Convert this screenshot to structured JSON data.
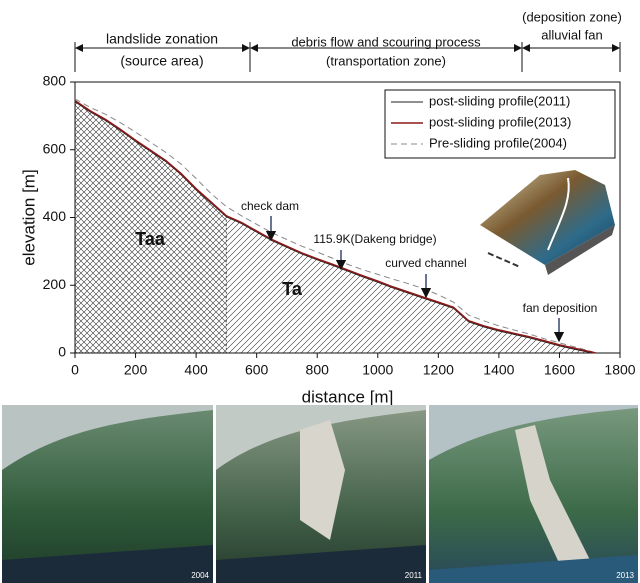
{
  "chart_data": {
    "type": "line",
    "xlabel": "distance [m]",
    "ylabel": "elevation [m]",
    "xlim": [
      0,
      1800
    ],
    "ylim": [
      0,
      800
    ],
    "xticks": [
      0,
      200,
      400,
      600,
      800,
      1000,
      1200,
      1400,
      1600,
      1800
    ],
    "yticks": [
      0,
      200,
      400,
      600,
      800
    ],
    "x": [
      0,
      50,
      100,
      150,
      200,
      250,
      300,
      350,
      400,
      450,
      500,
      550,
      600,
      650,
      700,
      750,
      800,
      850,
      900,
      950,
      1000,
      1050,
      1100,
      1150,
      1200,
      1250,
      1300,
      1350,
      1400,
      1450,
      1500,
      1550,
      1600,
      1650,
      1700,
      1720
    ],
    "series": [
      {
        "name": "post-sliding profile(2011)",
        "color": "#222222",
        "dash": false,
        "values": [
          742,
          712,
          687,
          657,
          625,
          595,
          565,
          527,
          482,
          442,
          402,
          382,
          357,
          332,
          312,
          292,
          275,
          259,
          242,
          225,
          209,
          192,
          177,
          162,
          147,
          132,
          92,
          77,
          65,
          55,
          45,
          33,
          21,
          11,
          2,
          0
        ]
      },
      {
        "name": "post-sliding profile(2013)",
        "color": "#8b1a1a",
        "dash": false,
        "values": [
          745,
          715,
          690,
          660,
          628,
          598,
          568,
          530,
          485,
          445,
          405,
          385,
          360,
          335,
          315,
          295,
          278,
          262,
          245,
          228,
          212,
          195,
          180,
          165,
          150,
          135,
          95,
          80,
          68,
          58,
          48,
          36,
          24,
          14,
          4,
          0
        ]
      },
      {
        "name": "Pre-sliding profile(2004)",
        "color": "#888888",
        "dash": true,
        "values": [
          750,
          725,
          705,
          680,
          652,
          622,
          592,
          558,
          515,
          470,
          432,
          405,
          380,
          355,
          335,
          315,
          298,
          280,
          262,
          246,
          232,
          218,
          205,
          190,
          172,
          150,
          112,
          95,
          80,
          68,
          56,
          42,
          30,
          18,
          6,
          0
        ]
      }
    ],
    "legend": "upper right",
    "zones": [
      {
        "title": "landslide zonation",
        "subtitle": "(source area)"
      },
      {
        "title": "debris flow and scouring process",
        "subtitle": "(transportation zone)"
      },
      {
        "title": "(deposition zone)",
        "subtitle": "alluvial fan"
      }
    ],
    "regions": [
      "Taa",
      "Ta"
    ],
    "annotations": [
      "check dam",
      "115.9K(Dakeng bridge)",
      "curved channel",
      "fan deposition"
    ],
    "photos": [
      "2004",
      "2011",
      "2013"
    ]
  }
}
